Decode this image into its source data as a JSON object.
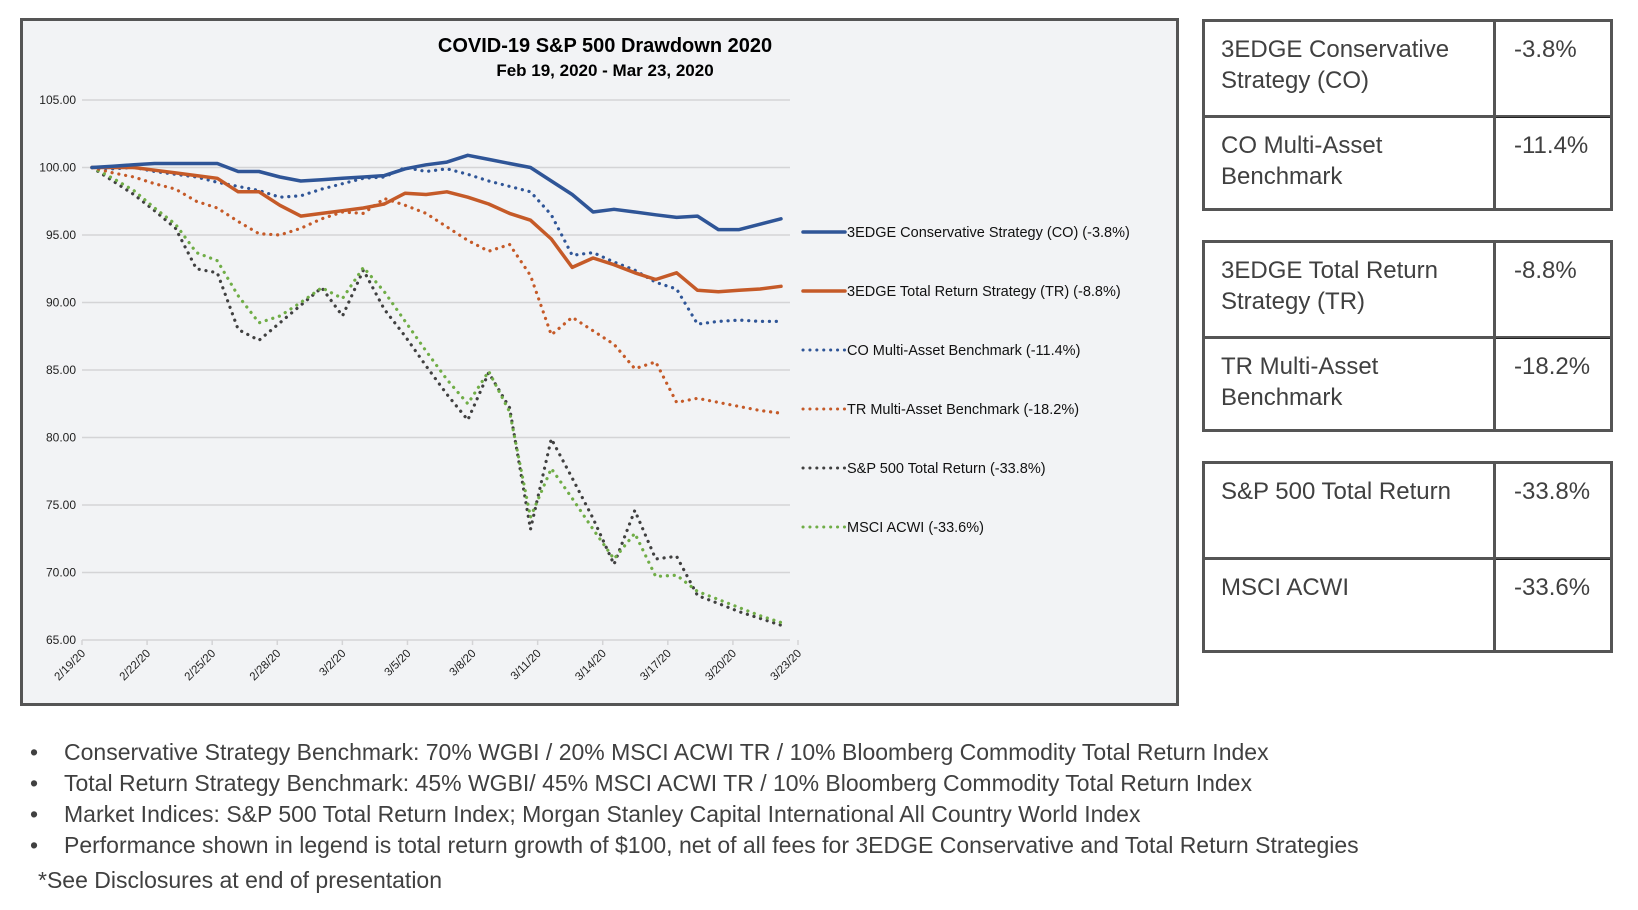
{
  "chart_data": {
    "type": "line",
    "title": "COVID-19 S&P 500 Drawdown 2020",
    "subtitle": "Feb 19, 2020 - Mar 23, 2020",
    "xlabel": "",
    "ylabel": "",
    "ylim": [
      65,
      105
    ],
    "yticks": [
      "105.00",
      "100.00",
      "95.00",
      "90.00",
      "85.00",
      "80.00",
      "75.00",
      "70.00",
      "65.00"
    ],
    "ytick_values": [
      105,
      100,
      95,
      90,
      85,
      80,
      75,
      70,
      65
    ],
    "xtick_labels": [
      "2/19/20",
      "2/22/20",
      "2/25/20",
      "2/28/20",
      "3/2/20",
      "3/5/20",
      "3/8/20",
      "3/11/20",
      "3/14/20",
      "3/17/20",
      "3/20/20",
      "3/23/20"
    ],
    "grid": true,
    "legend_position": "right",
    "x": [
      "2/19/20",
      "2/20/20",
      "2/21/20",
      "2/22/20",
      "2/23/20",
      "2/24/20",
      "2/25/20",
      "2/26/20",
      "2/27/20",
      "2/28/20",
      "2/29/20",
      "3/1/20",
      "3/2/20",
      "3/3/20",
      "3/4/20",
      "3/5/20",
      "3/6/20",
      "3/7/20",
      "3/8/20",
      "3/9/20",
      "3/10/20",
      "3/11/20",
      "3/12/20",
      "3/13/20",
      "3/14/20",
      "3/15/20",
      "3/16/20",
      "3/17/20",
      "3/18/20",
      "3/19/20",
      "3/20/20",
      "3/21/20",
      "3/22/20",
      "3/23/20"
    ],
    "series": [
      {
        "name": "3EDGE Conservative Strategy (CO) (-3.8%)",
        "color": "#2f5597",
        "style": "solid",
        "values": [
          100.0,
          100.1,
          100.2,
          100.3,
          100.3,
          100.3,
          100.3,
          99.7,
          99.7,
          99.3,
          99.0,
          99.1,
          99.2,
          99.3,
          99.4,
          99.9,
          100.2,
          100.4,
          100.9,
          100.6,
          100.3,
          100.0,
          99.0,
          98.0,
          96.7,
          96.9,
          96.7,
          96.5,
          96.3,
          96.4,
          95.4,
          95.4,
          95.8,
          96.2
        ]
      },
      {
        "name": "3EDGE Total Return Strategy (TR) (-8.8%)",
        "color": "#c55a28",
        "style": "solid",
        "values": [
          100.0,
          100.0,
          100.0,
          99.8,
          99.6,
          99.4,
          99.2,
          98.2,
          98.2,
          97.2,
          96.4,
          96.6,
          96.8,
          97.0,
          97.3,
          98.1,
          98.0,
          98.2,
          97.8,
          97.3,
          96.6,
          96.1,
          94.7,
          92.6,
          93.3,
          92.8,
          92.2,
          91.7,
          92.2,
          90.9,
          90.8,
          90.9,
          91.0,
          91.2
        ]
      },
      {
        "name": "CO Multi-Asset Benchmark (-11.4%)",
        "color": "#2f5597",
        "style": "dotted",
        "values": [
          100.0,
          99.9,
          100.0,
          99.7,
          99.5,
          99.3,
          98.9,
          98.6,
          98.3,
          97.8,
          97.9,
          98.4,
          98.8,
          99.2,
          99.3,
          100.0,
          99.7,
          99.9,
          99.5,
          99.0,
          98.6,
          98.2,
          96.5,
          93.5,
          93.7,
          93.0,
          92.4,
          91.5,
          91.0,
          88.4,
          88.6,
          88.7,
          88.6,
          88.6
        ]
      },
      {
        "name": "TR Multi-Asset Benchmark (-18.2%)",
        "color": "#c55a28",
        "style": "dotted",
        "values": [
          100.0,
          99.6,
          99.3,
          98.8,
          98.4,
          97.5,
          97.0,
          96.0,
          95.1,
          95.0,
          95.5,
          96.2,
          96.7,
          96.6,
          97.7,
          97.2,
          96.6,
          95.6,
          94.6,
          93.8,
          94.3,
          92.0,
          87.6,
          88.9,
          87.9,
          86.9,
          85.1,
          85.6,
          82.6,
          82.9,
          82.6,
          82.3,
          82.0,
          81.8
        ]
      },
      {
        "name": "S&P 500 Total Return (-33.8%)",
        "color": "#404040",
        "style": "dotted",
        "values": [
          100.0,
          99.0,
          98.0,
          96.8,
          95.5,
          92.5,
          92.2,
          88.0,
          87.2,
          88.5,
          89.8,
          91.1,
          89.0,
          92.4,
          89.5,
          87.5,
          85.3,
          83.2,
          81.3,
          84.8,
          82.2,
          73.2,
          79.9,
          77.0,
          74.0,
          70.6,
          74.6,
          71.0,
          71.2,
          68.3,
          67.7,
          67.1,
          66.6,
          66.1
        ]
      },
      {
        "name": "MSCI ACWI (-33.6%)",
        "color": "#70ad47",
        "style": "dotted",
        "values": [
          100.0,
          99.2,
          98.3,
          97.0,
          95.8,
          93.7,
          93.1,
          90.5,
          88.5,
          89.0,
          90.0,
          91.1,
          90.3,
          92.6,
          90.8,
          88.6,
          86.4,
          84.3,
          82.5,
          84.9,
          81.9,
          74.1,
          77.7,
          75.5,
          73.2,
          71.0,
          72.9,
          69.7,
          69.8,
          68.6,
          68.0,
          67.4,
          66.8,
          66.3
        ]
      }
    ]
  },
  "summary_tables": [
    {
      "rows": [
        {
          "label": "3EDGE Conservative Strategy (CO)",
          "value": "-3.8%"
        },
        {
          "label": "CO Multi-Asset Benchmark",
          "value": "-11.4%"
        }
      ]
    },
    {
      "rows": [
        {
          "label": "3EDGE Total Return Strategy (TR)",
          "value": "-8.8%"
        },
        {
          "label": "TR Multi-Asset Benchmark",
          "value": "-18.2%"
        }
      ]
    },
    {
      "rows": [
        {
          "label": "S&P 500 Total Return",
          "value": "-33.8%"
        },
        {
          "label": "MSCI ACWI",
          "value": "-33.6%"
        }
      ]
    }
  ],
  "notes": {
    "bullet_char": "•",
    "items": [
      "Conservative Strategy Benchmark: 70% WGBI / 20% MSCI ACWI TR / 10% Bloomberg Commodity Total Return Index",
      "Total Return Strategy Benchmark: 45% WGBI/ 45% MSCI ACWI TR / 10% Bloomberg Commodity Total Return Index",
      "Market Indices: S&P 500 Total Return Index; Morgan Stanley Capital International All Country World Index",
      "Performance shown in legend is total return growth of $100, net of all fees for 3EDGE Conservative and Total Return Strategies"
    ],
    "disclaimer": "*See Disclosures at end of presentation"
  }
}
